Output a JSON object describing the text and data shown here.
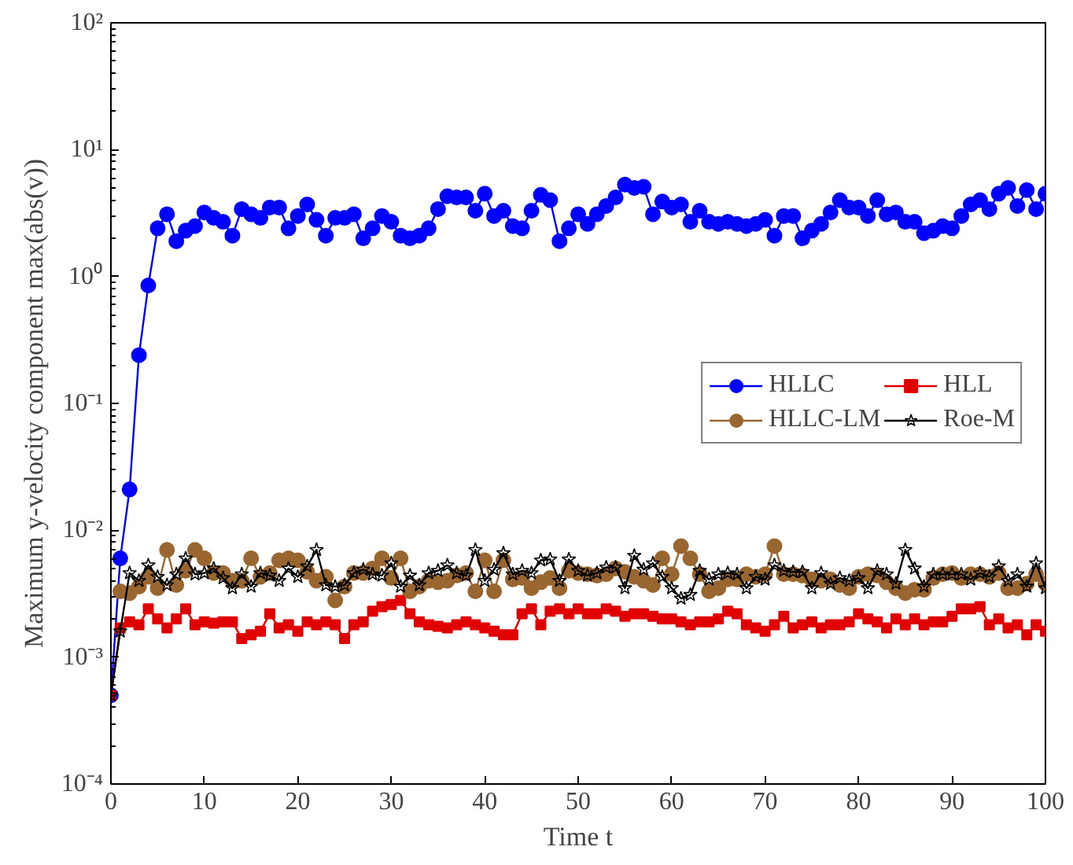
{
  "chart_data": {
    "type": "line",
    "xlabel": "Time t",
    "ylabel": "Maximum y-velocity component max(abs(v))",
    "log": "y",
    "xlim": [
      0,
      100
    ],
    "ylim": [
      0.0001,
      100
    ],
    "xticks": [
      0,
      10,
      20,
      30,
      40,
      50,
      60,
      70,
      80,
      90,
      100
    ],
    "yticks": [
      {
        "value": 0.0001,
        "label": "10⁻⁴"
      },
      {
        "value": 0.001,
        "label": "10⁻³"
      },
      {
        "value": 0.01,
        "label": "10⁻²"
      },
      {
        "value": 0.1,
        "label": "10⁻¹"
      },
      {
        "value": 1,
        "label": "10⁰"
      },
      {
        "value": 10,
        "label": "10¹"
      },
      {
        "value": 100,
        "label": "10²"
      }
    ],
    "grid": false,
    "legend": "right",
    "line_style": "solid",
    "x": [
      0,
      1,
      2,
      3,
      4,
      5,
      6,
      7,
      8,
      9,
      10,
      11,
      12,
      13,
      14,
      15,
      16,
      17,
      18,
      19,
      20,
      21,
      22,
      23,
      24,
      25,
      26,
      27,
      28,
      29,
      30,
      31,
      32,
      33,
      34,
      35,
      36,
      37,
      38,
      39,
      40,
      41,
      42,
      43,
      44,
      45,
      46,
      47,
      48,
      49,
      50,
      51,
      52,
      53,
      54,
      55,
      56,
      57,
      58,
      59,
      60,
      61,
      62,
      63,
      64,
      65,
      66,
      67,
      68,
      69,
      70,
      71,
      72,
      73,
      74,
      75,
      76,
      77,
      78,
      79,
      80,
      81,
      82,
      83,
      84,
      85,
      86,
      87,
      88,
      89,
      90,
      91,
      92,
      93,
      94,
      95,
      96,
      97,
      98,
      99,
      100
    ],
    "series": [
      {
        "name": "HLLC",
        "color": "#0000ff",
        "marker": "circle",
        "values": [
          0.0005,
          0.006,
          0.021,
          0.24,
          0.85,
          2.4,
          3.1,
          1.9,
          2.3,
          2.5,
          3.2,
          2.9,
          2.7,
          2.1,
          3.4,
          3.1,
          2.9,
          3.5,
          3.5,
          2.4,
          3.0,
          3.7,
          2.8,
          2.1,
          2.9,
          2.9,
          3.1,
          2.0,
          2.4,
          3.0,
          2.7,
          2.1,
          2.0,
          2.1,
          2.4,
          3.4,
          4.3,
          4.2,
          4.2,
          3.3,
          4.5,
          3.0,
          3.3,
          2.5,
          2.4,
          3.3,
          4.4,
          4.0,
          1.9,
          2.4,
          3.1,
          2.6,
          3.1,
          3.6,
          4.2,
          5.3,
          5.0,
          5.1,
          3.1,
          3.9,
          3.5,
          3.7,
          2.7,
          3.3,
          2.7,
          2.6,
          2.7,
          2.6,
          2.5,
          2.6,
          2.8,
          2.1,
          3.0,
          3.0,
          2.0,
          2.3,
          2.6,
          3.2,
          4.0,
          3.5,
          3.5,
          3.0,
          4.0,
          3.1,
          3.2,
          2.7,
          2.7,
          2.2,
          2.3,
          2.5,
          2.4,
          3.0,
          3.7,
          4.0,
          3.4,
          4.5,
          5.0,
          3.6,
          4.8,
          3.4,
          4.5
        ]
      },
      {
        "name": "HLL",
        "color": "#e00000",
        "marker": "square",
        "values": [
          0.0005,
          0.0017,
          0.0019,
          0.0018,
          0.0024,
          0.002,
          0.0017,
          0.002,
          0.0024,
          0.0018,
          0.0019,
          0.00185,
          0.0019,
          0.0019,
          0.0014,
          0.0015,
          0.0016,
          0.0022,
          0.0017,
          0.0018,
          0.0016,
          0.0019,
          0.0018,
          0.0019,
          0.0018,
          0.0014,
          0.0018,
          0.0019,
          0.0023,
          0.0025,
          0.0026,
          0.0028,
          0.0022,
          0.0019,
          0.0018,
          0.00175,
          0.0017,
          0.0018,
          0.0019,
          0.0018,
          0.0017,
          0.0016,
          0.0015,
          0.0015,
          0.0022,
          0.0024,
          0.0018,
          0.0023,
          0.0024,
          0.0022,
          0.0024,
          0.0022,
          0.0022,
          0.0024,
          0.0023,
          0.0021,
          0.0022,
          0.0022,
          0.0021,
          0.002,
          0.002,
          0.0019,
          0.0018,
          0.0019,
          0.0019,
          0.002,
          0.0023,
          0.0022,
          0.0018,
          0.0017,
          0.0016,
          0.0018,
          0.0021,
          0.0017,
          0.0018,
          0.0019,
          0.0017,
          0.0018,
          0.0018,
          0.0019,
          0.0022,
          0.002,
          0.0019,
          0.0017,
          0.002,
          0.0018,
          0.002,
          0.0018,
          0.0019,
          0.0019,
          0.0021,
          0.0024,
          0.0024,
          0.0025,
          0.0018,
          0.002,
          0.0017,
          0.0018,
          0.0015,
          0.0018,
          0.0016
        ]
      },
      {
        "name": "HLLC-LM",
        "color": "#9a6630",
        "marker": "circle",
        "values": [
          null,
          0.0033,
          0.0032,
          0.0036,
          0.0043,
          0.0035,
          0.007,
          0.0037,
          0.0048,
          0.007,
          0.006,
          0.0046,
          0.0046,
          0.004,
          0.004,
          0.006,
          0.0043,
          0.0046,
          0.0058,
          0.006,
          0.0058,
          0.0047,
          0.004,
          0.0043,
          0.0028,
          0.0036,
          0.0046,
          0.0046,
          0.005,
          0.006,
          0.0042,
          0.006,
          0.0033,
          0.0036,
          0.004,
          0.0039,
          0.004,
          0.0044,
          0.0046,
          0.0033,
          0.0058,
          0.0033,
          0.0058,
          0.0041,
          0.0042,
          0.0035,
          0.0039,
          0.0042,
          0.0035,
          0.0048,
          0.0046,
          0.0045,
          0.0044,
          0.0045,
          0.005,
          0.0047,
          0.0043,
          0.004,
          0.0037,
          0.006,
          0.0045,
          0.0075,
          0.006,
          0.0045,
          0.0033,
          0.0035,
          0.0041,
          0.0041,
          0.0045,
          0.0043,
          0.0045,
          0.0075,
          0.0045,
          0.0045,
          0.0044,
          0.0041,
          0.004,
          0.0041,
          0.0037,
          0.0035,
          0.0043,
          0.0045,
          0.0044,
          0.0039,
          0.0035,
          0.0032,
          0.0034,
          0.0034,
          0.0042,
          0.0045,
          0.0046,
          0.0042,
          0.0045,
          0.0045,
          0.0043,
          0.0046,
          0.0035,
          0.0035,
          0.0038,
          0.0045,
          0.0038
        ]
      },
      {
        "name": "Roe-M",
        "color": "#000000",
        "marker": "star",
        "values": [
          0.0005,
          0.0016,
          0.0046,
          0.004,
          0.0053,
          0.0043,
          0.0037,
          0.0045,
          0.006,
          0.0045,
          0.0046,
          0.005,
          0.0042,
          0.0035,
          0.0045,
          0.0036,
          0.0046,
          0.0044,
          0.004,
          0.005,
          0.0043,
          0.0052,
          0.007,
          0.0037,
          0.0036,
          0.0037,
          0.0046,
          0.0049,
          0.0045,
          0.0044,
          0.0055,
          0.0036,
          0.0044,
          0.0037,
          0.0046,
          0.0048,
          0.0053,
          0.0046,
          0.0044,
          0.007,
          0.004,
          0.0049,
          0.0066,
          0.0045,
          0.0048,
          0.0046,
          0.0058,
          0.0059,
          0.004,
          0.0059,
          0.0048,
          0.0044,
          0.0046,
          0.0051,
          0.0051,
          0.0035,
          0.0063,
          0.0049,
          0.0055,
          0.0043,
          0.0035,
          0.0029,
          0.0031,
          0.0048,
          0.0041,
          0.0045,
          0.0046,
          0.0045,
          0.0035,
          0.0043,
          0.0041,
          0.0053,
          0.0048,
          0.0047,
          0.0047,
          0.0035,
          0.0046,
          0.0038,
          0.0042,
          0.004,
          0.0042,
          0.0035,
          0.0048,
          0.0045,
          0.0038,
          0.007,
          0.005,
          0.0036,
          0.0045,
          0.0045,
          0.0045,
          0.0045,
          0.0041,
          0.0046,
          0.0043,
          0.0052,
          0.004,
          0.0045,
          0.0036,
          0.0055,
          0.0035
        ]
      }
    ]
  }
}
